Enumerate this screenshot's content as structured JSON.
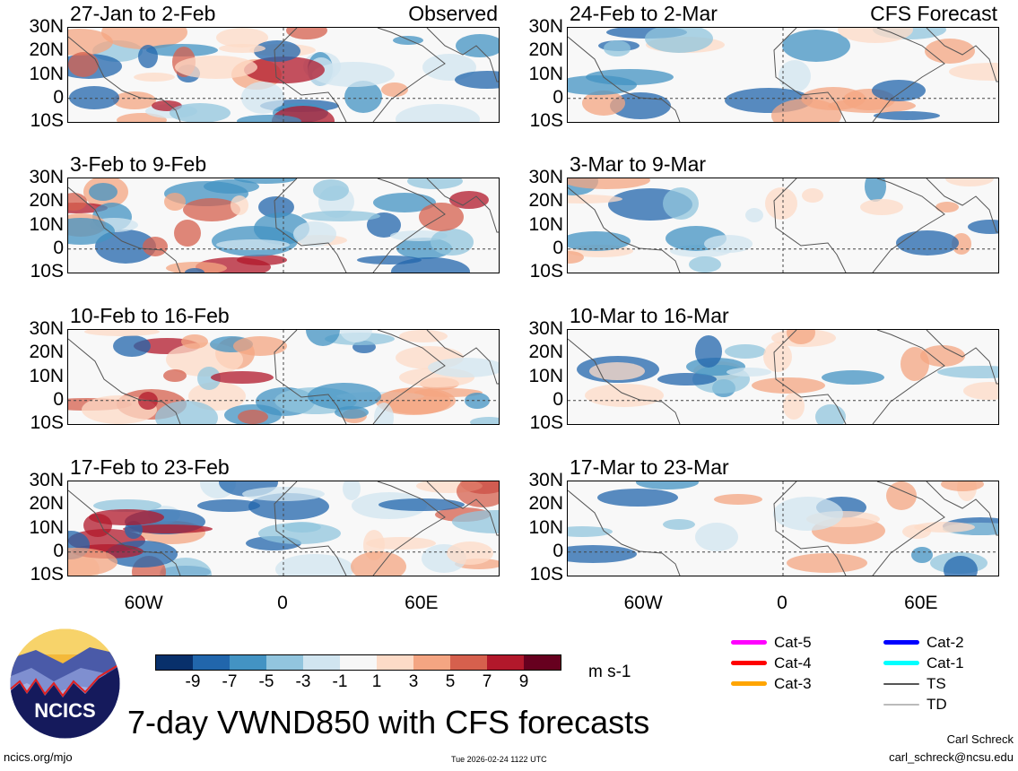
{
  "left_header": "Observed",
  "right_header": "CFS Forecast",
  "left_panels": [
    "27-Jan to 2-Feb",
    "3-Feb to 9-Feb",
    "10-Feb to 16-Feb",
    "17-Feb to 23-Feb"
  ],
  "right_panels": [
    "24-Feb to 2-Mar",
    "3-Mar to 9-Mar",
    "10-Mar to 16-Mar",
    "17-Mar to 23-Mar"
  ],
  "lat_labels": [
    "30N",
    "20N",
    "10N",
    "0",
    "10S"
  ],
  "lon_labels": [
    "60W",
    "0",
    "60E"
  ],
  "colorbar": {
    "colors": [
      "#08306b",
      "#2166ac",
      "#4393c3",
      "#92c5de",
      "#d1e5f0",
      "#f7f7f7",
      "#fddbc7",
      "#f4a582",
      "#d6604d",
      "#b2182b",
      "#67001f"
    ],
    "ticks": [
      "-9",
      "-7",
      "-5",
      "-3",
      "-1",
      "1",
      "3",
      "5",
      "7",
      "9"
    ],
    "units": "m s-1"
  },
  "legend": [
    {
      "label": "Cat-5",
      "color": "#ff00ff"
    },
    {
      "label": "Cat-4",
      "color": "#ff0000"
    },
    {
      "label": "Cat-3",
      "color": "#ffa500"
    },
    {
      "label": "Cat-2",
      "color": "#0000ff"
    },
    {
      "label": "Cat-1",
      "color": "#00ffff"
    },
    {
      "label": "TS",
      "color": "#555555"
    },
    {
      "label": "TD",
      "color": "#bbbbbb"
    }
  ],
  "title": "7-day VWND850 with CFS forecasts",
  "logo_text": "NCICS",
  "footer": {
    "url": "ncics.org/mjo",
    "timestamp": "Tue 2026-02-24 1122 UTC",
    "author": "Carl Schreck",
    "email": "carl_schreck@ncsu.edu"
  }
}
